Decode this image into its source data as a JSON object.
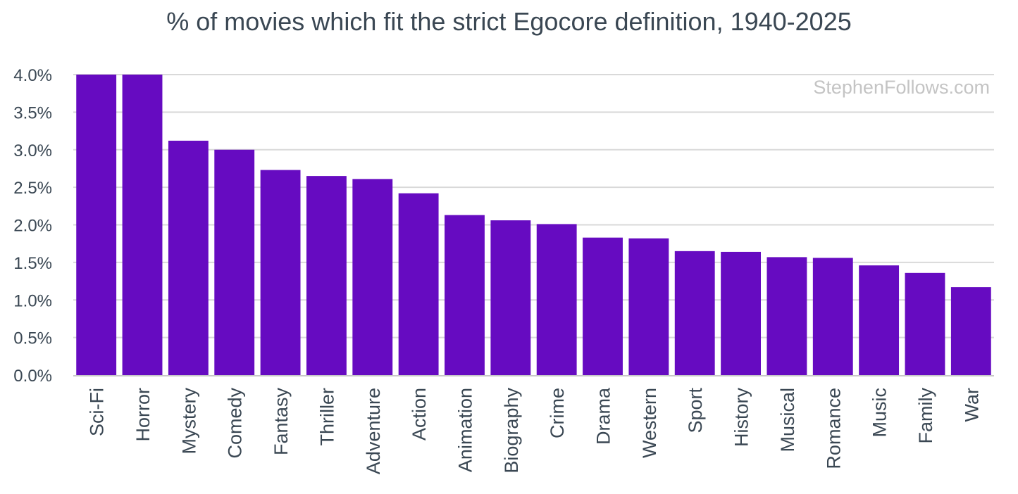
{
  "chart_data": {
    "type": "bar",
    "title": "% of movies which fit the strict Egocore definition, 1940-2025",
    "watermark": "StephenFollows.com",
    "xlabel": "",
    "ylabel": "",
    "categories": [
      "Sci-Fi",
      "Horror",
      "Mystery",
      "Comedy",
      "Fantasy",
      "Thriller",
      "Adventure",
      "Action",
      "Animation",
      "Biography",
      "Crime",
      "Drama",
      "Western",
      "Sport",
      "History",
      "Musical",
      "Romance",
      "Music",
      "Family",
      "War"
    ],
    "values": [
      4.0,
      4.0,
      3.12,
      3.0,
      2.73,
      2.65,
      2.61,
      2.42,
      2.13,
      2.06,
      2.01,
      1.83,
      1.82,
      1.65,
      1.64,
      1.57,
      1.56,
      1.46,
      1.36,
      1.17
    ],
    "ylim": [
      0,
      4.0
    ],
    "yticks": [
      "0.0%",
      "0.5%",
      "1.0%",
      "1.5%",
      "2.0%",
      "2.5%",
      "3.0%",
      "3.5%",
      "4.0%"
    ],
    "grid": true,
    "legend": "none",
    "colors": {
      "bar": "#660bc1",
      "grid": "#d9d9d9",
      "axis": "#c8c8c8",
      "text": "#3a4753",
      "watermark": "#c4c4c4"
    }
  }
}
